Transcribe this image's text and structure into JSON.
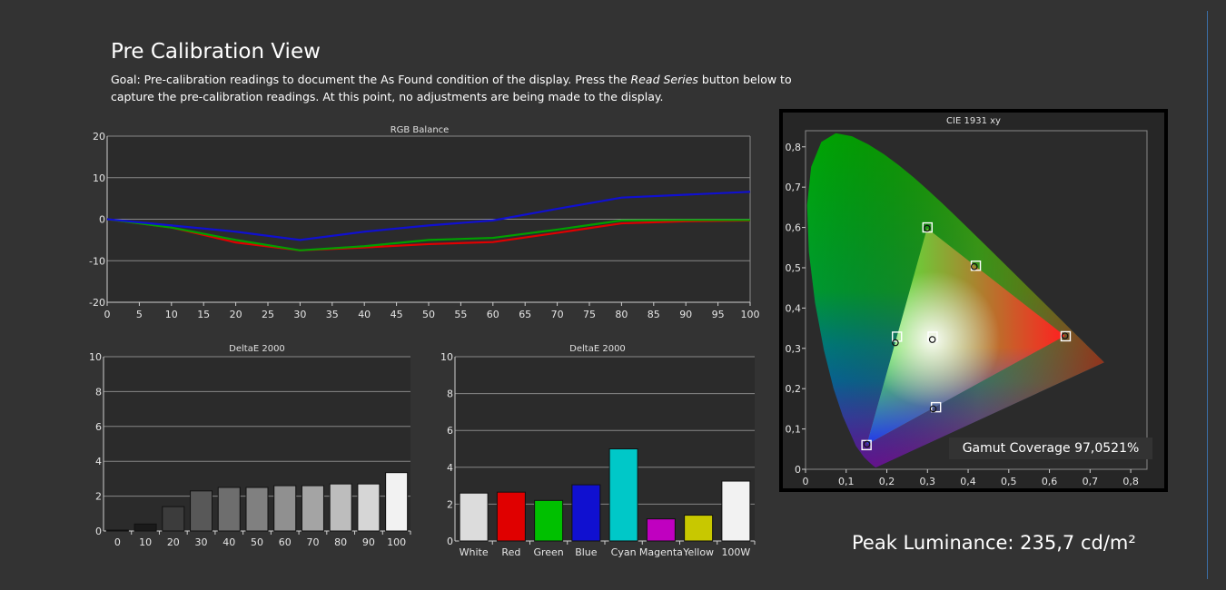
{
  "page": {
    "title": "Pre Calibration View",
    "goal_prefix": "Goal: Pre-calibration readings to document the As Found condition of the display. Press the ",
    "goal_em": "Read Series",
    "goal_suffix": " button below to capture the pre-calibration readings. At this point, no adjustments are being made to the display.",
    "peak_luminance": "Peak Luminance: 235,7 cd/m²",
    "gamut_coverage": "Gamut Coverage 97,0521%"
  },
  "chart_data": [
    {
      "id": "rgb",
      "type": "line",
      "title": "RGB Balance",
      "x": [
        0,
        10,
        20,
        30,
        40,
        50,
        60,
        70,
        80,
        90,
        100
      ],
      "x_ticks": [
        "0",
        "5",
        "10",
        "15",
        "20",
        "25",
        "30",
        "35",
        "40",
        "45",
        "50",
        "55",
        "60",
        "65",
        "70",
        "75",
        "80",
        "85",
        "90",
        "95",
        "100"
      ],
      "x_tick_values": [
        0,
        5,
        10,
        15,
        20,
        25,
        30,
        35,
        40,
        45,
        50,
        55,
        60,
        65,
        70,
        75,
        80,
        85,
        90,
        95,
        100
      ],
      "y_ticks": [
        "20",
        "10",
        "0",
        "-10",
        "-20"
      ],
      "y_tick_values": [
        20,
        10,
        0,
        -10,
        -20
      ],
      "ylim": [
        -20,
        20
      ],
      "xlim": [
        0,
        100
      ],
      "series": [
        {
          "color": "#e00000",
          "values": [
            0,
            -2,
            -5.6,
            -7.5,
            -6.8,
            -6,
            -5.5,
            -3.3,
            -1,
            -0.5,
            -0.3
          ]
        },
        {
          "color": "#00a000",
          "values": [
            0,
            -2,
            -5,
            -7.5,
            -6.5,
            -5,
            -4.5,
            -2.5,
            -0.3,
            -0.2,
            -0.2
          ]
        },
        {
          "color": "#1010d0",
          "values": [
            0,
            -1.5,
            -3,
            -5,
            -3,
            -1.5,
            -0.3,
            2.5,
            5.2,
            5.9,
            6.6
          ]
        }
      ]
    },
    {
      "id": "de_gray",
      "type": "bar",
      "title": "DeltaE 2000",
      "categories": [
        "0",
        "10",
        "20",
        "30",
        "40",
        "50",
        "60",
        "70",
        "80",
        "90",
        "100"
      ],
      "values": [
        0.05,
        0.4,
        1.4,
        2.3,
        2.5,
        2.5,
        2.6,
        2.6,
        2.7,
        2.7,
        3.35
      ],
      "colors": [
        "#000000",
        "#1a1a1a",
        "#3c3c3c",
        "#585858",
        "#6e6e6e",
        "#808080",
        "#909090",
        "#a4a4a4",
        "#bdbdbd",
        "#d6d6d6",
        "#f2f2f2"
      ],
      "y_ticks": [
        "10",
        "8",
        "6",
        "4",
        "2",
        "0"
      ],
      "y_tick_values": [
        10,
        8,
        6,
        4,
        2,
        0
      ],
      "ylim": [
        0,
        10
      ]
    },
    {
      "id": "de_color",
      "type": "bar",
      "title": "DeltaE 2000",
      "categories": [
        "White",
        "Red",
        "Green",
        "Blue",
        "Cyan",
        "Magenta",
        "Yellow",
        "100W"
      ],
      "values": [
        2.6,
        2.65,
        2.2,
        3.05,
        5.0,
        1.2,
        1.4,
        3.25
      ],
      "colors": [
        "#dcdcdc",
        "#e00000",
        "#00c000",
        "#1010d0",
        "#00c8c8",
        "#c000c0",
        "#c8c800",
        "#f2f2f2"
      ],
      "y_ticks": [
        "10",
        "8",
        "6",
        "4",
        "2",
        "0"
      ],
      "y_tick_values": [
        10,
        8,
        6,
        4,
        2,
        0
      ],
      "ylim": [
        0,
        10
      ]
    },
    {
      "id": "cie",
      "type": "scatter",
      "title": "CIE 1931 xy",
      "x_ticks": [
        "0",
        "0,1",
        "0,2",
        "0,3",
        "0,4",
        "0,5",
        "0,6",
        "0,7",
        "0,8"
      ],
      "x_tick_values": [
        0,
        0.1,
        0.2,
        0.3,
        0.4,
        0.5,
        0.6,
        0.7,
        0.8
      ],
      "y_ticks": [
        "0,8",
        "0,7",
        "0,6",
        "0,5",
        "0,4",
        "0,3",
        "0,2",
        "0,1",
        "0"
      ],
      "y_tick_values": [
        0.8,
        0.7,
        0.6,
        0.5,
        0.4,
        0.3,
        0.2,
        0.1,
        0
      ],
      "xlim": [
        0,
        0.84
      ],
      "ylim": [
        0,
        0.84
      ],
      "targets": [
        {
          "name": "red",
          "x": 0.64,
          "y": 0.33
        },
        {
          "name": "green",
          "x": 0.3,
          "y": 0.6
        },
        {
          "name": "blue",
          "x": 0.15,
          "y": 0.06
        },
        {
          "name": "cyan",
          "x": 0.225,
          "y": 0.329
        },
        {
          "name": "magenta",
          "x": 0.321,
          "y": 0.154
        },
        {
          "name": "yellow",
          "x": 0.419,
          "y": 0.505
        },
        {
          "name": "white",
          "x": 0.3127,
          "y": 0.329
        }
      ],
      "measured": [
        {
          "name": "red",
          "x": 0.638,
          "y": 0.331
        },
        {
          "name": "green",
          "x": 0.299,
          "y": 0.598
        },
        {
          "name": "blue",
          "x": 0.151,
          "y": 0.062
        },
        {
          "name": "cyan",
          "x": 0.221,
          "y": 0.314
        },
        {
          "name": "magenta",
          "x": 0.314,
          "y": 0.15
        },
        {
          "name": "yellow",
          "x": 0.415,
          "y": 0.503
        },
        {
          "name": "white",
          "x": 0.312,
          "y": 0.322
        }
      ]
    }
  ]
}
